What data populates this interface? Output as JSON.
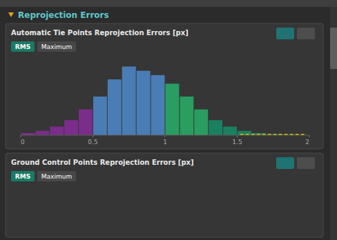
{
  "chart_data": {
    "type": "histogram",
    "title": "Automatic Tie Points Reprojection Errors [px]",
    "annotations": [
      "Reprojection Errors",
      "Ground Control Points Reprojection Errors [px]",
      "RMS",
      "Maximum"
    ],
    "bins": [
      0.0,
      0.1,
      0.2,
      0.3,
      0.4,
      0.5,
      0.6,
      0.7,
      0.8,
      0.9,
      1.0,
      1.1,
      1.2,
      1.3,
      1.4,
      1.5,
      1.6,
      1.7,
      1.8,
      1.9
    ],
    "values": [
      1,
      2,
      4,
      7,
      12,
      18,
      26,
      32,
      30,
      28,
      24,
      18,
      12,
      7,
      4,
      2,
      1,
      0.5,
      0.2
    ],
    "colors": [
      "#7b2d8b",
      "#7b2d8b",
      "#7b2d8b",
      "#7b2d8b",
      "#7b2d8b",
      "#4a7db5",
      "#4a7db5",
      "#4a7db5",
      "#4a7db5",
      "#4a7db5",
      "#2a9d60",
      "#2a9d60",
      "#2a9d60",
      "#1a8060",
      "#1a8060",
      "#1a8060",
      "#1a8060",
      "#1a8060",
      "#1a8060"
    ],
    "reference_line": {
      "x": [
        1.52,
        1.98
      ],
      "y": 0.3,
      "color": "#d4c000",
      "line_style": "dashed"
    },
    "xlim": [
      0,
      2
    ],
    "ylim": [
      0,
      36
    ],
    "xticks": [
      0,
      0.5,
      1,
      1.5,
      2
    ],
    "tick_labels": "x",
    "grid": false
  }
}
